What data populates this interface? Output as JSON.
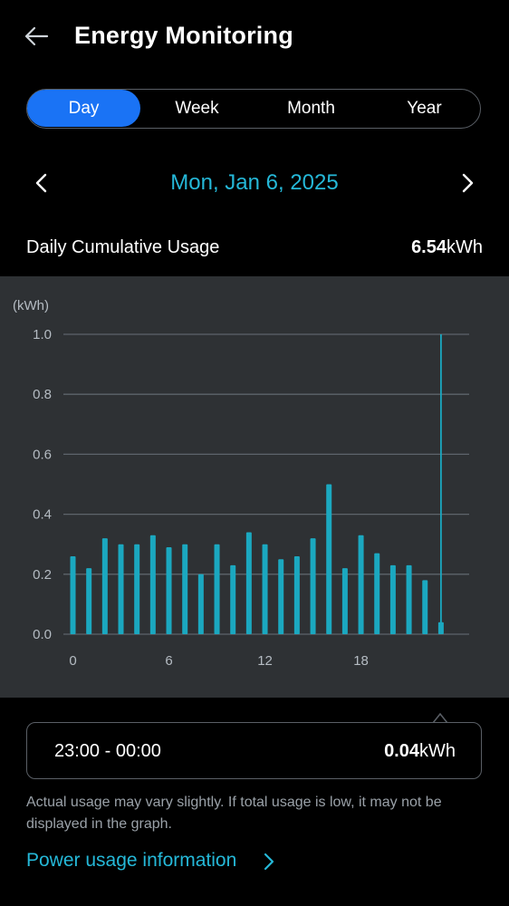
{
  "header": {
    "title": "Energy Monitoring"
  },
  "tabs": [
    {
      "label": "Day",
      "active": true
    },
    {
      "label": "Week",
      "active": false
    },
    {
      "label": "Month",
      "active": false
    },
    {
      "label": "Year",
      "active": false
    }
  ],
  "date": {
    "label": "Mon, Jan 6, 2025"
  },
  "summary": {
    "label": "Daily Cumulative Usage",
    "value": "6.54",
    "unit": "kWh"
  },
  "chart_data": {
    "type": "bar",
    "ylabel": "(kWh)",
    "ylim": [
      0,
      1.0
    ],
    "yticks": [
      "0.0",
      "0.2",
      "0.4",
      "0.6",
      "0.8",
      "1.0"
    ],
    "xticks": [
      {
        "label": "0",
        "hour": 0
      },
      {
        "label": "6",
        "hour": 6
      },
      {
        "label": "12",
        "hour": 12
      },
      {
        "label": "18",
        "hour": 18
      }
    ],
    "x": [
      0,
      1,
      2,
      3,
      4,
      5,
      6,
      7,
      8,
      9,
      10,
      11,
      12,
      13,
      14,
      15,
      16,
      17,
      18,
      19,
      20,
      21,
      22,
      23
    ],
    "values": [
      0.26,
      0.22,
      0.32,
      0.3,
      0.3,
      0.33,
      0.29,
      0.3,
      0.2,
      0.3,
      0.23,
      0.34,
      0.3,
      0.25,
      0.26,
      0.32,
      0.5,
      0.22,
      0.33,
      0.27,
      0.23,
      0.23,
      0.18,
      0.04
    ],
    "selected_index": 23,
    "bar_color": "#1ba8c0",
    "grid": true
  },
  "tooltip": {
    "time": "23:00 - 00:00",
    "value": "0.04",
    "unit": "kWh"
  },
  "note": "Actual usage may vary slightly. If total usage is low, it may not be displayed in the graph.",
  "link": {
    "label": "Power usage information"
  },
  "colors": {
    "accent": "#1a73f5",
    "highlight": "#25b8d8",
    "panel": "#2e3134"
  }
}
